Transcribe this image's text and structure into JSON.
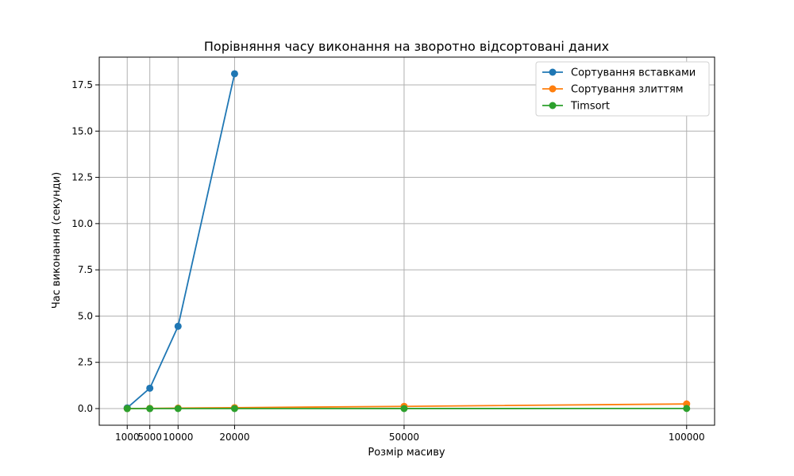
{
  "chart_data": {
    "type": "line",
    "title": "Порівняння часу виконання на зворотно відсортовані даних",
    "xlabel": "Розмір масиву",
    "ylabel": "Час виконання (секунди)",
    "x": [
      1000,
      5000,
      10000,
      20000,
      50000,
      100000
    ],
    "x_tick_labels": [
      "1000",
      "5000",
      "10000",
      "20000",
      "50000",
      "100000"
    ],
    "y_ticks": [
      0.0,
      2.5,
      5.0,
      7.5,
      10.0,
      12.5,
      15.0,
      17.5
    ],
    "y_tick_labels": [
      "0.0",
      "2.5",
      "5.0",
      "7.5",
      "10.0",
      "12.5",
      "15.0",
      "17.5"
    ],
    "xlim": [
      -3950,
      104950
    ],
    "ylim": [
      -0.9,
      19.0
    ],
    "grid": true,
    "legend_position": "top-right",
    "series": [
      {
        "name": "Сортування вставками",
        "color": "#1f77b4",
        "points": [
          [
            1000,
            0.04
          ],
          [
            5000,
            1.1
          ],
          [
            10000,
            4.45
          ],
          [
            20000,
            18.1
          ]
        ]
      },
      {
        "name": "Сортування злиттям",
        "color": "#ff7f0e",
        "points": [
          [
            1000,
            0.002
          ],
          [
            5000,
            0.01
          ],
          [
            10000,
            0.025
          ],
          [
            20000,
            0.05
          ],
          [
            50000,
            0.12
          ],
          [
            100000,
            0.25
          ]
        ]
      },
      {
        "name": "Timsort",
        "color": "#2ca02c",
        "points": [
          [
            1000,
            0.0001
          ],
          [
            5000,
            0.0003
          ],
          [
            10000,
            0.0006
          ],
          [
            20000,
            0.0012
          ],
          [
            50000,
            0.003
          ],
          [
            100000,
            0.006
          ]
        ]
      }
    ]
  }
}
